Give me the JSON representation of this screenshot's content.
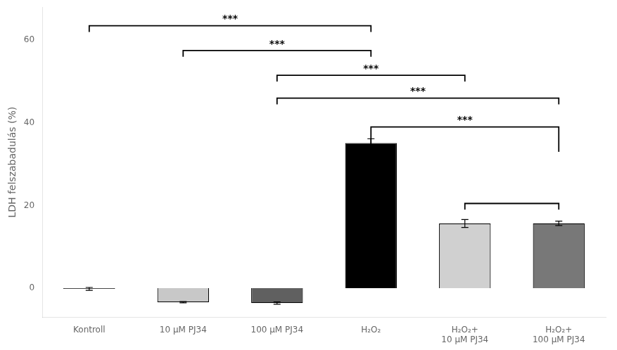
{
  "chart_data": {
    "type": "bar",
    "categories": [
      "Kontroll",
      "10 μM PJ34",
      "100 μM PJ34",
      "H₂O₂",
      "H₂O₂+\n10 μM PJ34",
      "H₂O₂+\n100 μM PJ34"
    ],
    "values": [
      -0.18,
      -3.4,
      -3.61,
      35.14,
      15.65,
      15.69
    ],
    "errors": [
      0.36,
      0.16,
      0.27,
      1.01,
      0.95,
      0.54
    ],
    "colors": [
      "#111111",
      "#c8c8c8",
      "#606060",
      "#000000",
      "#d0d0d0",
      "#787878"
    ],
    "ylabel": "LDH felszabadulás (%)",
    "ylim": [
      -7,
      68
    ],
    "yticks": [
      0,
      20,
      40,
      60
    ],
    "grid": false,
    "brackets": [
      {
        "from": "Kontroll",
        "to": "H₂O₂",
        "y": 63.5,
        "y_bottom": 62.0,
        "label": "***"
      },
      {
        "from": "10 μM PJ34",
        "to": "H₂O₂",
        "y": 57.5,
        "y_bottom": 56.0,
        "label": "***"
      },
      {
        "from": "100 μM PJ34",
        "to": "H₂O₂+\n10 μM PJ34",
        "y": 51.5,
        "y_bottom": 50.0,
        "label": "***"
      },
      {
        "from": "100 μM PJ34",
        "to": "H₂O₂+\n100 μM PJ34",
        "y": 46.0,
        "y_bottom": 44.5,
        "label": "***"
      },
      {
        "from": "H₂O₂",
        "to": "H₂O₂+\n100 μM PJ34",
        "y": 39.0,
        "y_bottom": 33.0,
        "label": "***"
      },
      {
        "from": "H₂O₂+\n10 μM PJ34",
        "to": "H₂O₂+\n100 μM PJ34",
        "y": 20.5,
        "y_bottom": 19.0
      }
    ]
  }
}
